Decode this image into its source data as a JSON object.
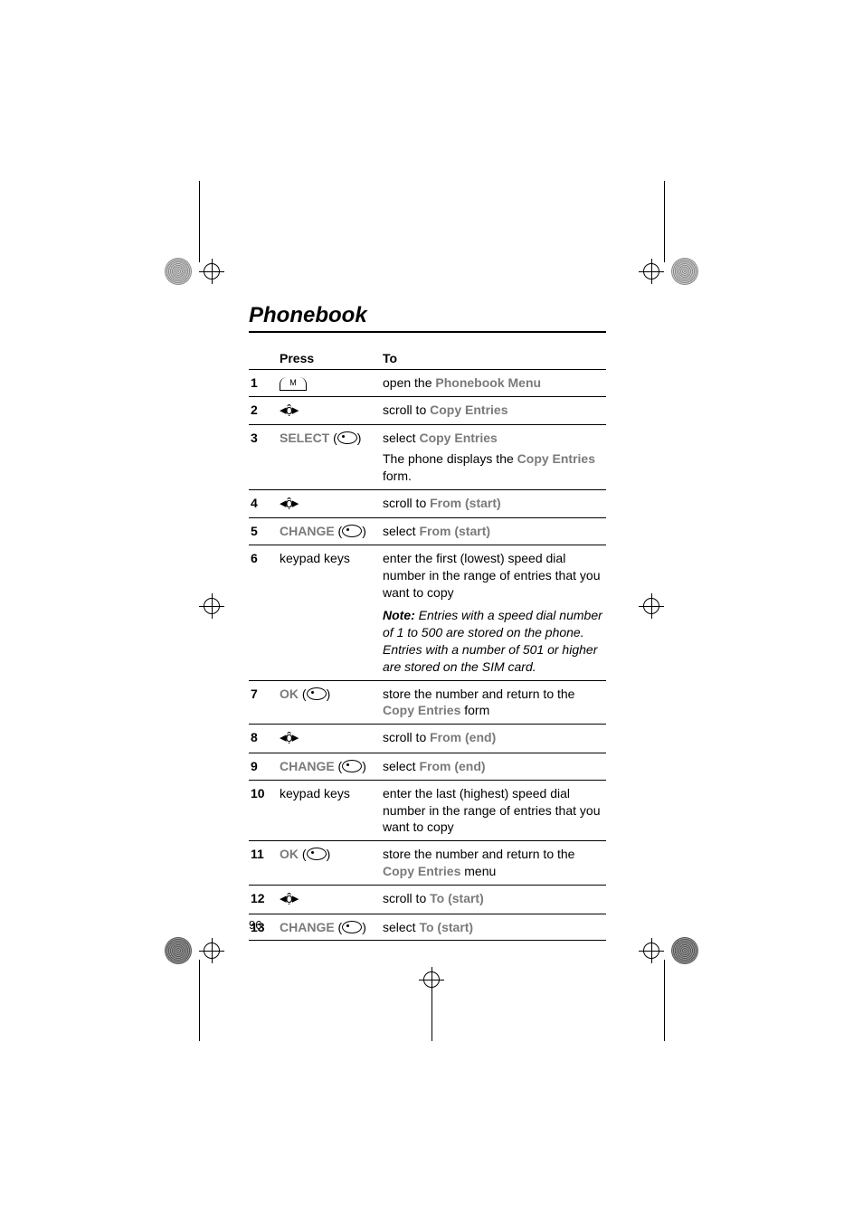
{
  "page_title": "Phonebook",
  "page_number": "96",
  "headers": {
    "press": "Press",
    "to": "To"
  },
  "labels": {
    "select": "SELECT",
    "change": "CHANGE",
    "ok": "OK",
    "m": "M",
    "nav": "◂⬨▸"
  },
  "rows": [
    {
      "n": "1",
      "press_type": "m",
      "to_pre": "open the ",
      "to_mono": "Phonebook Menu"
    },
    {
      "n": "2",
      "press_type": "nav",
      "to_pre": "scroll to ",
      "to_mono": "Copy Entries"
    },
    {
      "n": "3",
      "press_type": "sk",
      "sk": "select",
      "to_pre": "select ",
      "to_mono": "Copy Entries",
      "to_post": "",
      "extra_pre": "The phone displays the ",
      "extra_mono": "Copy Entries",
      "extra_post": " form."
    },
    {
      "n": "4",
      "press_type": "nav",
      "to_pre": "scroll to ",
      "to_mono": "From (start)"
    },
    {
      "n": "5",
      "press_type": "sk",
      "sk": "change",
      "to_pre": "select ",
      "to_mono": "From (start)"
    },
    {
      "n": "6",
      "press_type": "text",
      "press_text": "keypad keys",
      "to_pre": "enter the first (lowest) speed dial number in the range of entries that you want to copy",
      "note_lead": "Note:",
      "note_body": " Entries with a speed dial number of 1 to 500 are stored on the phone. Entries with a number of 501 or higher are stored on the SIM card."
    },
    {
      "n": "7",
      "press_type": "sk",
      "sk": "ok",
      "to_pre": "store the number and return to the ",
      "to_mono": "Copy Entries",
      "to_post": " form"
    },
    {
      "n": "8",
      "press_type": "nav",
      "to_pre": "scroll to ",
      "to_mono": "From (end)"
    },
    {
      "n": "9",
      "press_type": "sk",
      "sk": "change",
      "to_pre": "select ",
      "to_mono": "From (end)"
    },
    {
      "n": "10",
      "press_type": "text",
      "press_text": "keypad keys",
      "to_pre": "enter the last (highest) speed dial number in the range of entries that you want to copy"
    },
    {
      "n": "11",
      "press_type": "sk",
      "sk": "ok",
      "to_pre": "store the number and return to the ",
      "to_mono": "Copy Entries",
      "to_post": " menu"
    },
    {
      "n": "12",
      "press_type": "nav",
      "to_pre": "scroll to ",
      "to_mono": "To (start)"
    },
    {
      "n": "13",
      "press_type": "sk",
      "sk": "change",
      "to_pre": "select ",
      "to_mono": "To (start)"
    }
  ]
}
